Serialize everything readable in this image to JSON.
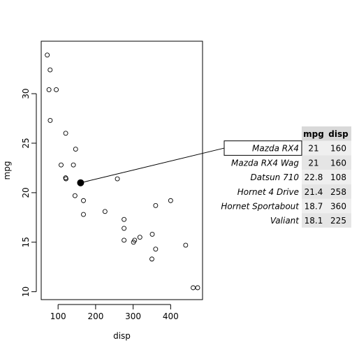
{
  "chart_data": {
    "type": "scatter",
    "xlabel": "disp",
    "ylabel": "mpg",
    "xlim": [
      55,
      485
    ],
    "ylim": [
      9.2,
      35.3
    ],
    "xticks": [
      100,
      200,
      300,
      400
    ],
    "yticks": [
      10,
      15,
      20,
      25,
      30
    ],
    "points": [
      {
        "x": 160,
        "y": 21.0
      },
      {
        "x": 160,
        "y": 21.0
      },
      {
        "x": 108,
        "y": 22.8
      },
      {
        "x": 258,
        "y": 21.4
      },
      {
        "x": 360,
        "y": 18.7
      },
      {
        "x": 225,
        "y": 18.1
      },
      {
        "x": 360,
        "y": 14.3
      },
      {
        "x": 146.7,
        "y": 24.4
      },
      {
        "x": 140.8,
        "y": 22.8
      },
      {
        "x": 167.6,
        "y": 19.2
      },
      {
        "x": 167.6,
        "y": 17.8
      },
      {
        "x": 275.8,
        "y": 16.4
      },
      {
        "x": 275.8,
        "y": 17.3
      },
      {
        "x": 275.8,
        "y": 15.2
      },
      {
        "x": 472,
        "y": 10.4
      },
      {
        "x": 460,
        "y": 10.4
      },
      {
        "x": 440,
        "y": 14.7
      },
      {
        "x": 78.7,
        "y": 32.4
      },
      {
        "x": 75.7,
        "y": 30.4
      },
      {
        "x": 71.1,
        "y": 33.9
      },
      {
        "x": 120.1,
        "y": 21.5
      },
      {
        "x": 318,
        "y": 15.5
      },
      {
        "x": 304,
        "y": 15.2
      },
      {
        "x": 350,
        "y": 13.3
      },
      {
        "x": 400,
        "y": 19.2
      },
      {
        "x": 79,
        "y": 27.3
      },
      {
        "x": 120.3,
        "y": 26.0
      },
      {
        "x": 95.1,
        "y": 30.4
      },
      {
        "x": 351,
        "y": 15.8
      },
      {
        "x": 145,
        "y": 19.7
      },
      {
        "x": 301,
        "y": 15.0
      },
      {
        "x": 121,
        "y": 21.4
      }
    ],
    "highlight": {
      "x": 160,
      "y": 21.0
    },
    "table": {
      "headers": [
        "mpg",
        "disp"
      ],
      "rows": [
        {
          "name": "Mazda RX4",
          "mpg": "21",
          "disp": "160"
        },
        {
          "name": "Mazda RX4 Wag",
          "mpg": "21",
          "disp": "160"
        },
        {
          "name": "Datsun 710",
          "mpg": "22.8",
          "disp": "108"
        },
        {
          "name": "Hornet 4 Drive",
          "mpg": "21.4",
          "disp": "258"
        },
        {
          "name": "Hornet Sportabout",
          "mpg": "18.7",
          "disp": "360"
        },
        {
          "name": "Valiant",
          "mpg": "18.1",
          "disp": "225"
        }
      ]
    },
    "colors": {
      "header_bg": "#d9d9d9",
      "row_bg_even": "#efefef",
      "row_bg_odd": "#e5e5e5"
    }
  }
}
